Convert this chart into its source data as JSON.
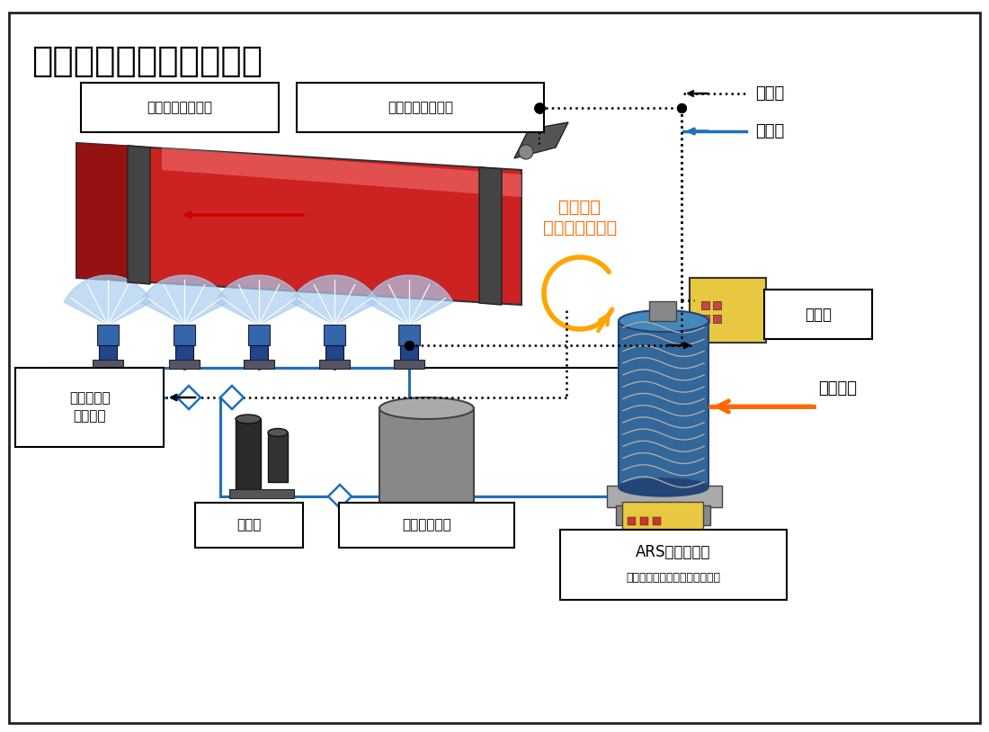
{
  "title": "キルン微霧冷却システム",
  "title_fontsize": 28,
  "bg_color": "#ffffff",
  "label_rotary_kiln": "ロータリーキルン",
  "label_scanner": "走査型放射温度計",
  "label_control_panel": "制御盤",
  "label_fan_unit": "微霧ファン\nユニット",
  "label_pump": "ポンプ",
  "label_tank": "ろ過水タンク",
  "label_filter": "ARSフィルター",
  "label_filter_sub": "（フィルター自洗式ろ過装置）",
  "label_industrial_water": "工業用水",
  "label_signal": "信　号",
  "label_cooling_water": "冷却水",
  "label_temp_feedback": "温度情報\nフィードバック",
  "orange_color": "#FF6600",
  "blue_color": "#1E6FBE",
  "kiln_red": "#CC2222",
  "kiln_dark_red": "#8B1010"
}
